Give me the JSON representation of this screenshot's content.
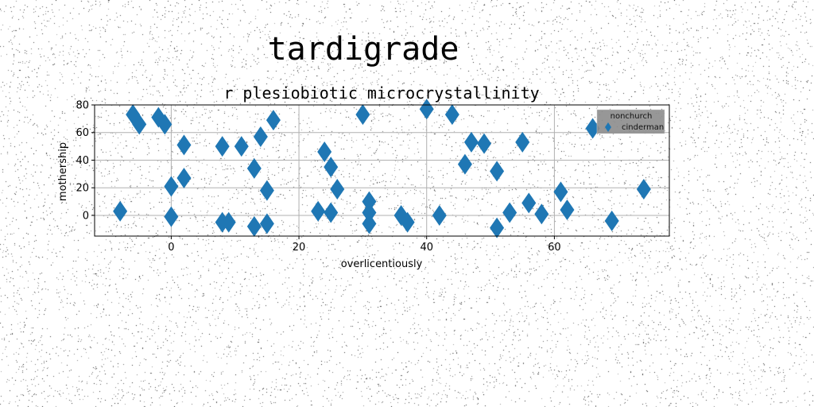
{
  "figure": {
    "suptitle": "tardigrade"
  },
  "colors": {
    "marker": "#1f77b4",
    "grid": "#b0b0b0",
    "legend_bg": "#8c8c8c"
  },
  "chart_data": {
    "type": "scatter",
    "title": "r plesiobiotic microcrystallinity",
    "xlabel": "overlicentiously",
    "ylabel": "mothership",
    "xlim": [
      -12,
      78
    ],
    "ylim": [
      -15,
      80
    ],
    "xticks": [
      0,
      20,
      40,
      60
    ],
    "yticks": [
      0,
      20,
      40,
      60,
      80
    ],
    "grid": true,
    "marker": "thin-diamond",
    "legend": {
      "title": "nonchurch",
      "entries": [
        "cinderman"
      ],
      "placement": "upper right"
    },
    "series": [
      {
        "name": "cinderman",
        "points": [
          [
            -8,
            3
          ],
          [
            -6,
            73
          ],
          [
            -5,
            66
          ],
          [
            -2,
            71
          ],
          [
            -1,
            66
          ],
          [
            0,
            21
          ],
          [
            0,
            -1
          ],
          [
            2,
            51
          ],
          [
            2,
            27
          ],
          [
            8,
            50
          ],
          [
            8,
            -5
          ],
          [
            9,
            -5
          ],
          [
            11,
            50
          ],
          [
            13,
            34
          ],
          [
            13,
            -8
          ],
          [
            14,
            57
          ],
          [
            15,
            18
          ],
          [
            15,
            -6
          ],
          [
            16,
            69
          ],
          [
            23,
            3
          ],
          [
            24,
            46
          ],
          [
            25,
            35
          ],
          [
            25,
            2
          ],
          [
            26,
            19
          ],
          [
            30,
            73
          ],
          [
            31,
            10
          ],
          [
            31,
            2
          ],
          [
            31,
            -6
          ],
          [
            36,
            0
          ],
          [
            37,
            -5
          ],
          [
            40,
            77
          ],
          [
            42,
            0
          ],
          [
            44,
            73
          ],
          [
            46,
            37
          ],
          [
            47,
            53
          ],
          [
            49,
            52
          ],
          [
            51,
            32
          ],
          [
            51,
            -9
          ],
          [
            53,
            2
          ],
          [
            55,
            53
          ],
          [
            56,
            9
          ],
          [
            58,
            1
          ],
          [
            61,
            17
          ],
          [
            62,
            4
          ],
          [
            66,
            63
          ],
          [
            69,
            -4
          ],
          [
            74,
            19
          ]
        ]
      }
    ]
  }
}
